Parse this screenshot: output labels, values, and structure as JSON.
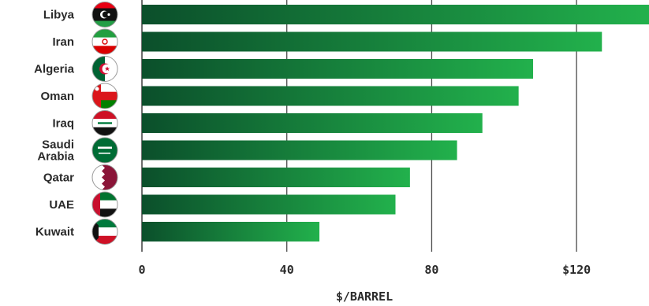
{
  "chart_data": {
    "type": "bar",
    "orientation": "horizontal",
    "categories": [
      "Libya",
      "Iran",
      "Algeria",
      "Oman",
      "Iraq",
      "Saudi Arabia",
      "Qatar",
      "UAE",
      "Kuwait"
    ],
    "category_lines": [
      [
        "Libya"
      ],
      [
        "Iran"
      ],
      [
        "Algeria"
      ],
      [
        "Oman"
      ],
      [
        "Iraq"
      ],
      [
        "Saudi",
        "Arabia"
      ],
      [
        "Qatar"
      ],
      [
        "UAE"
      ],
      [
        "Kuwait"
      ]
    ],
    "flag_icons": [
      "libya-flag-icon",
      "iran-flag-icon",
      "algeria-flag-icon",
      "oman-flag-icon",
      "iraq-flag-icon",
      "saudi-arabia-flag-icon",
      "qatar-flag-icon",
      "uae-flag-icon",
      "kuwait-flag-icon"
    ],
    "values": [
      140,
      127,
      108,
      104,
      94,
      87,
      74,
      70,
      49
    ],
    "xticks": [
      0,
      40,
      80,
      120
    ],
    "xtick_labels": [
      "0",
      "40",
      "80",
      "$120"
    ],
    "xlim": [
      0,
      140
    ],
    "xlabel": "$/BARREL",
    "grid": "vertical",
    "bar_color_start": "#0b4f2b",
    "bar_color_end": "#22b14c"
  }
}
